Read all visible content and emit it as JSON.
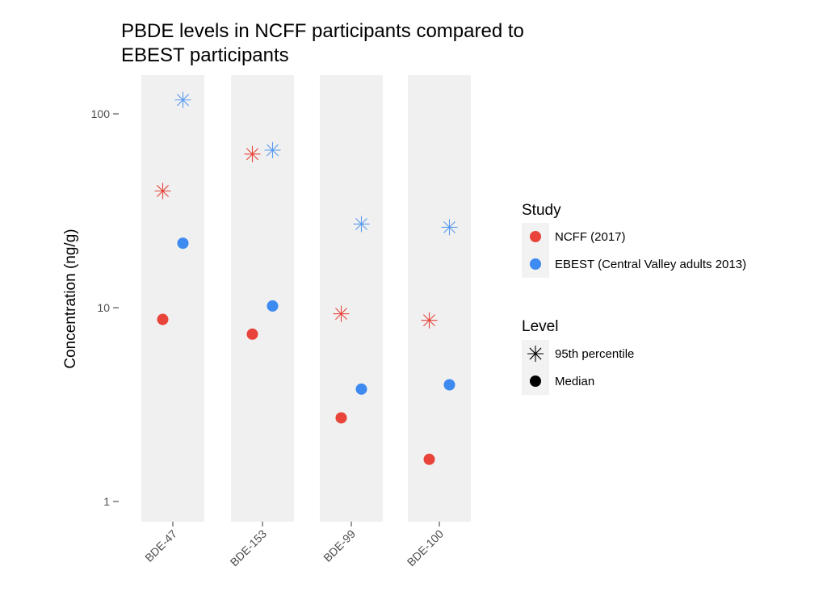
{
  "chart_data": {
    "type": "scatter",
    "title_line1": "PBDE levels in NCFF participants compared to",
    "title_line2": "EBEST participants",
    "xlabel": "",
    "ylabel": "Concentration (ng/g)",
    "yscale": "log",
    "ylim": [
      0.8,
      200
    ],
    "yticks": [
      1,
      10,
      100
    ],
    "ytick_labels": [
      "1",
      "10",
      "100"
    ],
    "categories": [
      "BDE-47",
      "BDE-153",
      "BDE-99",
      "BDE-100"
    ],
    "grid": false,
    "legend_position": "right",
    "series": [
      {
        "study": "NCFF (2017)",
        "level": "95th percentile",
        "color": "#e8443a",
        "shape": "asterisk",
        "values": [
          40,
          62,
          9.3,
          8.6
        ]
      },
      {
        "study": "NCFF (2017)",
        "level": "Median",
        "color": "#e8443a",
        "shape": "circle",
        "values": [
          8.7,
          7.3,
          2.7,
          1.65
        ]
      },
      {
        "study": "EBEST (Central Valley adults 2013)",
        "level": "95th percentile",
        "color": "#5b9cf0",
        "shape": "asterisk",
        "values": [
          118,
          65,
          27,
          26
        ]
      },
      {
        "study": "EBEST (Central Valley adults 2013)",
        "level": "Median",
        "color": "#3d8af0",
        "shape": "circle",
        "values": [
          21.5,
          10.2,
          3.8,
          4.0
        ]
      }
    ],
    "legend": {
      "study_title": "Study",
      "study_items": [
        {
          "label": "NCFF (2017)",
          "color": "#e8443a"
        },
        {
          "label": "EBEST (Central Valley adults 2013)",
          "color": "#3d8af0"
        }
      ],
      "level_title": "Level",
      "level_items": [
        {
          "label": "95th percentile",
          "shape": "asterisk"
        },
        {
          "label": "Median",
          "shape": "circle"
        }
      ]
    }
  }
}
